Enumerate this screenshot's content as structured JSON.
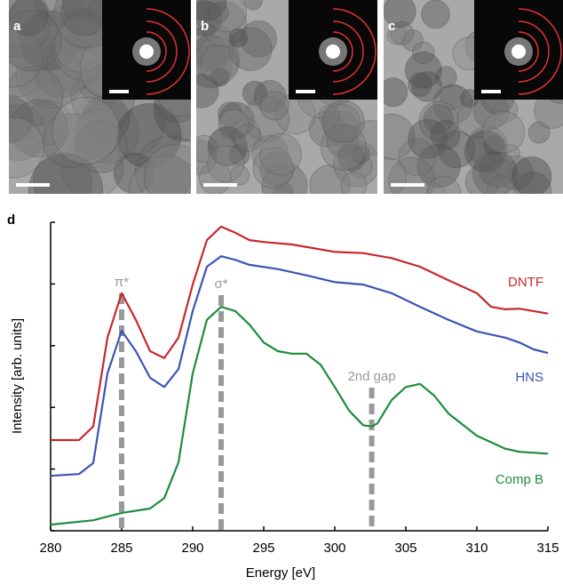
{
  "panels": [
    {
      "label": "a"
    },
    {
      "label": "b"
    },
    {
      "label": "c"
    }
  ],
  "chart_data": {
    "type": "line",
    "panel_label": "d",
    "x_label": "Energy [eV]",
    "y_label": "Intensity [arb. units]",
    "xlim": [
      280,
      315
    ],
    "xticks": [
      280,
      285,
      290,
      295,
      300,
      305,
      310,
      315
    ],
    "ylim": [
      0,
      5
    ],
    "yticks": [
      0,
      1,
      2,
      3,
      4,
      5
    ],
    "series": [
      {
        "name": "DNTF",
        "color": "#c8282d",
        "x": [
          280,
          282,
          283,
          284,
          285,
          286,
          287,
          288,
          289,
          290,
          291,
          292,
          293,
          294,
          295,
          297,
          300,
          302,
          304,
          306,
          308,
          310,
          311,
          312,
          313,
          314,
          315
        ],
        "values": [
          1.47,
          1.47,
          1.69,
          3.13,
          3.85,
          3.42,
          2.91,
          2.8,
          3.13,
          3.99,
          4.71,
          4.93,
          4.83,
          4.71,
          4.68,
          4.64,
          4.52,
          4.5,
          4.42,
          4.28,
          4.06,
          3.85,
          3.63,
          3.59,
          3.6,
          3.56,
          3.52
        ]
      },
      {
        "name": "HNS",
        "color": "#3a55b4",
        "x": [
          280,
          282,
          283,
          284,
          285,
          286,
          287,
          288,
          289,
          290,
          291,
          292,
          293,
          294,
          296,
          298,
          300,
          302,
          304,
          306,
          308,
          310,
          312,
          313,
          314,
          315
        ],
        "values": [
          0.89,
          0.92,
          1.1,
          2.55,
          3.24,
          2.91,
          2.48,
          2.33,
          2.62,
          3.56,
          4.28,
          4.45,
          4.39,
          4.31,
          4.24,
          4.14,
          4.03,
          3.99,
          3.85,
          3.63,
          3.42,
          3.23,
          3.13,
          3.05,
          2.94,
          2.88
        ]
      },
      {
        "name": "Comp B",
        "color": "#1e8c3c",
        "x": [
          280,
          283,
          285,
          287,
          288,
          289,
          290,
          291,
          292,
          293,
          294,
          295,
          296,
          297,
          298,
          299,
          300,
          301,
          302,
          302.6,
          303,
          304,
          305,
          306,
          307,
          308,
          310,
          312,
          313,
          315
        ],
        "values": [
          0.1,
          0.17,
          0.29,
          0.36,
          0.53,
          1.11,
          2.55,
          3.42,
          3.63,
          3.56,
          3.34,
          3.05,
          2.91,
          2.87,
          2.87,
          2.69,
          2.33,
          1.95,
          1.71,
          1.69,
          1.74,
          2.12,
          2.33,
          2.38,
          2.19,
          1.9,
          1.54,
          1.33,
          1.28,
          1.25
        ]
      }
    ],
    "annotations": [
      {
        "text": "π*",
        "x": 285
      },
      {
        "text": "σ*",
        "x": 292
      },
      {
        "text": "2nd gap",
        "x": 302.6
      }
    ]
  }
}
